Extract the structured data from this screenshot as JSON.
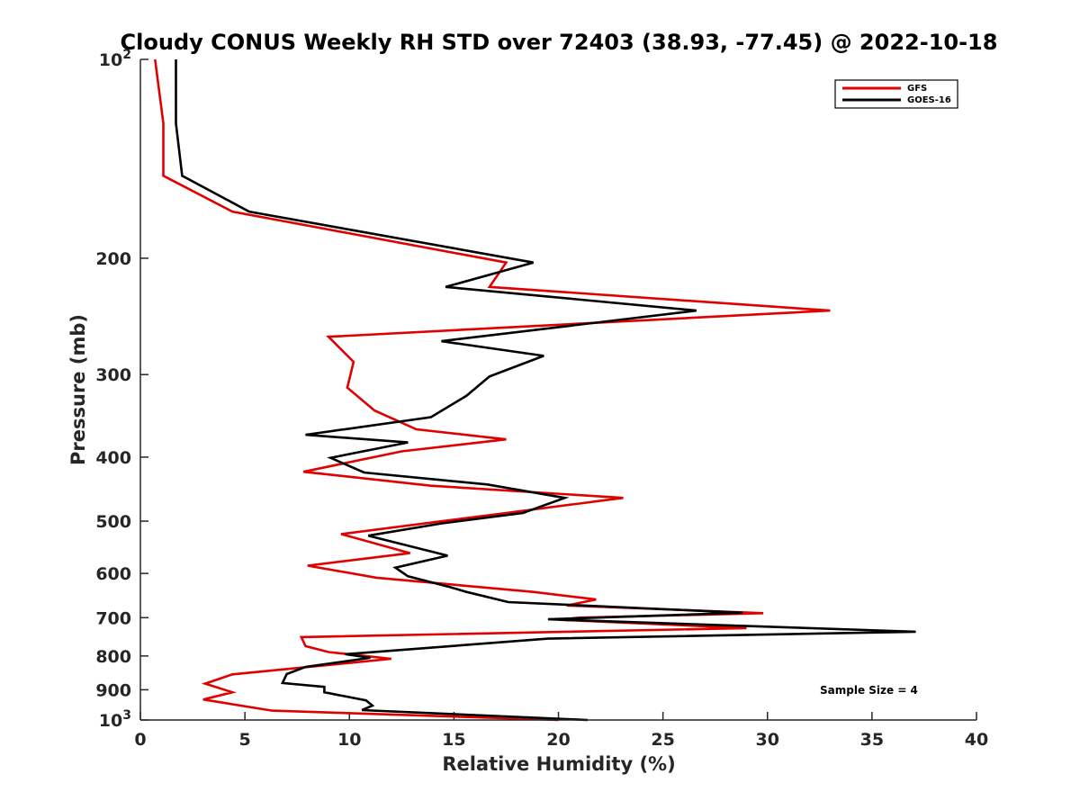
{
  "chart_data": {
    "type": "line",
    "title": "Cloudy CONUS Weekly RH STD over 72403 (38.93, -77.45) @ 2022-10-18",
    "xlabel": "Relative Humidity (%)",
    "ylabel": "Pressure (mb)",
    "xlim": [
      0,
      40
    ],
    "ylim": [
      100,
      1000
    ],
    "y_scale": "log",
    "y_reversed": true,
    "grid": false,
    "legend_position": "top-right",
    "x_ticks": [
      0,
      5,
      10,
      15,
      20,
      25,
      30,
      35,
      40
    ],
    "x_tick_labels": [
      "0",
      "5",
      "10",
      "15",
      "20",
      "25",
      "30",
      "35",
      "40"
    ],
    "y_ticks": [
      100,
      200,
      300,
      400,
      500,
      600,
      700,
      800,
      900,
      1000
    ],
    "y_tick_labels": [
      {
        "base": "10",
        "exp": "2"
      },
      {
        "base": "200",
        "exp": ""
      },
      {
        "base": "300",
        "exp": ""
      },
      {
        "base": "400",
        "exp": ""
      },
      {
        "base": "500",
        "exp": ""
      },
      {
        "base": "600",
        "exp": ""
      },
      {
        "base": "700",
        "exp": ""
      },
      {
        "base": "800",
        "exp": ""
      },
      {
        "base": "900",
        "exp": ""
      },
      {
        "base": "10",
        "exp": "3"
      }
    ],
    "annotation": "Sample Size = 4",
    "series": [
      {
        "name": "GFS",
        "color": "#e00000",
        "points": [
          [
            0.7,
            100
          ],
          [
            1.1,
            125
          ],
          [
            1.1,
            150
          ],
          [
            4.4,
            170
          ],
          [
            17.5,
            203
          ],
          [
            16.7,
            221
          ],
          [
            33.0,
            240
          ],
          [
            9.0,
            263
          ],
          [
            10.2,
            287
          ],
          [
            9.9,
            314
          ],
          [
            11.2,
            340
          ],
          [
            13.2,
            363
          ],
          [
            17.5,
            376
          ],
          [
            12.5,
            392
          ],
          [
            7.8,
            421
          ],
          [
            13.9,
            442
          ],
          [
            23.1,
            461
          ],
          [
            17.5,
            486
          ],
          [
            9.6,
            523
          ],
          [
            12.9,
            559
          ],
          [
            8.0,
            584
          ],
          [
            11.3,
            609
          ],
          [
            18.8,
            640
          ],
          [
            21.8,
            657
          ],
          [
            20.4,
            671
          ],
          [
            29.8,
            689
          ],
          [
            21.0,
            700
          ],
          [
            20.0,
            705
          ],
          [
            29.0,
            726
          ],
          [
            7.7,
            749
          ],
          [
            7.9,
            773
          ],
          [
            9.0,
            789
          ],
          [
            12.0,
            808
          ],
          [
            4.4,
            853
          ],
          [
            3.1,
            881
          ],
          [
            4.4,
            908
          ],
          [
            3.0,
            931
          ],
          [
            6.3,
            968
          ],
          [
            20.0,
            1000
          ]
        ]
      },
      {
        "name": "GOES-16",
        "color": "#000000",
        "points": [
          [
            1.7,
            100
          ],
          [
            1.7,
            125
          ],
          [
            2.0,
            150
          ],
          [
            5.2,
            170
          ],
          [
            18.8,
            203
          ],
          [
            14.6,
            221
          ],
          [
            26.6,
            240
          ],
          [
            14.4,
            267
          ],
          [
            19.3,
            281
          ],
          [
            16.7,
            302
          ],
          [
            15.6,
            323
          ],
          [
            13.9,
            348
          ],
          [
            7.9,
            370
          ],
          [
            12.8,
            380
          ],
          [
            9.1,
            401
          ],
          [
            10.7,
            422
          ],
          [
            16.6,
            440
          ],
          [
            20.3,
            461
          ],
          [
            18.3,
            486
          ],
          [
            14.4,
            504
          ],
          [
            10.9,
            526
          ],
          [
            14.7,
            564
          ],
          [
            12.2,
            588
          ],
          [
            12.8,
            606
          ],
          [
            14.8,
            629
          ],
          [
            15.6,
            640
          ],
          [
            17.6,
            663
          ],
          [
            28.8,
            688
          ],
          [
            19.5,
            704
          ],
          [
            37.1,
            735
          ],
          [
            19.5,
            753
          ],
          [
            9.8,
            795
          ],
          [
            11.0,
            805
          ],
          [
            7.9,
            831
          ],
          [
            7.0,
            852
          ],
          [
            6.8,
            879
          ],
          [
            8.8,
            891
          ],
          [
            8.8,
            908
          ],
          [
            10.8,
            934
          ],
          [
            11.1,
            951
          ],
          [
            10.6,
            966
          ],
          [
            21.4,
            1000
          ]
        ]
      }
    ]
  }
}
